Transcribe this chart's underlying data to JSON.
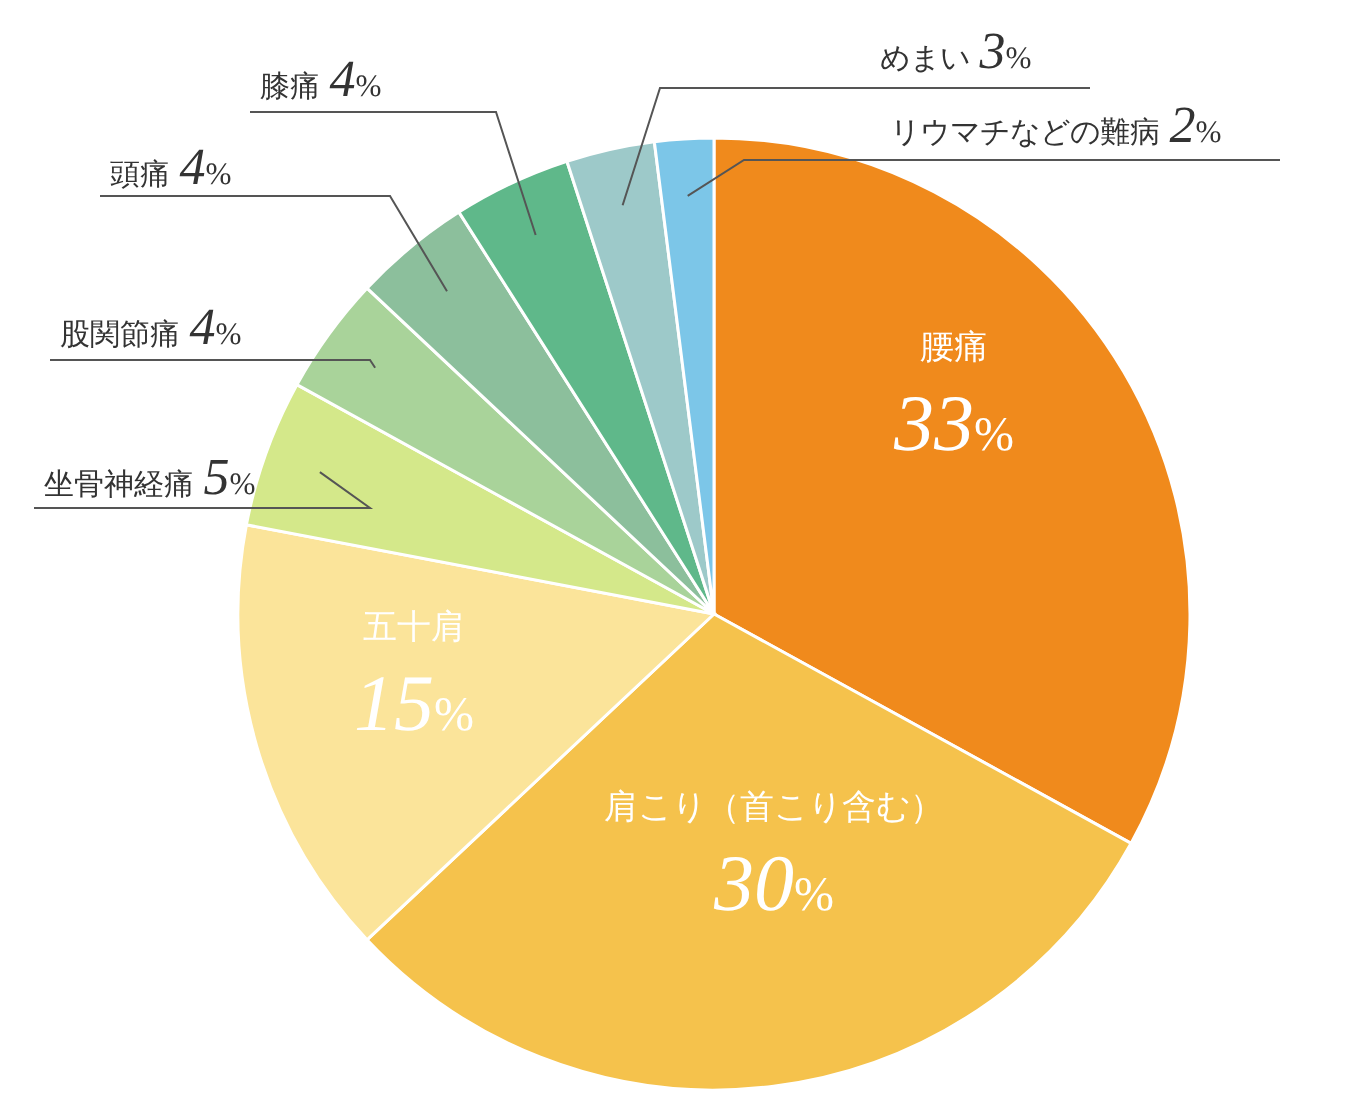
{
  "chart_data": {
    "type": "pie",
    "categories": [
      "腰痛",
      "肩こり（首こり含む）",
      "五十肩",
      "坐骨神経痛",
      "股関節痛",
      "頭痛",
      "膝痛",
      "めまい",
      "リウマチなどの難病"
    ],
    "values": [
      33,
      30,
      15,
      5,
      4,
      4,
      4,
      3,
      2
    ],
    "colors": [
      "#f08a1c",
      "#f5c24c",
      "#fbe49a",
      "#d4e88a",
      "#a9d39a",
      "#8cbf9c",
      "#5fb88a",
      "#9dc9c9",
      "#7cc6e8"
    ],
    "value_labels": [
      "33%",
      "30%",
      "15%",
      "5%",
      "4%",
      "4%",
      "4%",
      "3%",
      "2%"
    ]
  }
}
